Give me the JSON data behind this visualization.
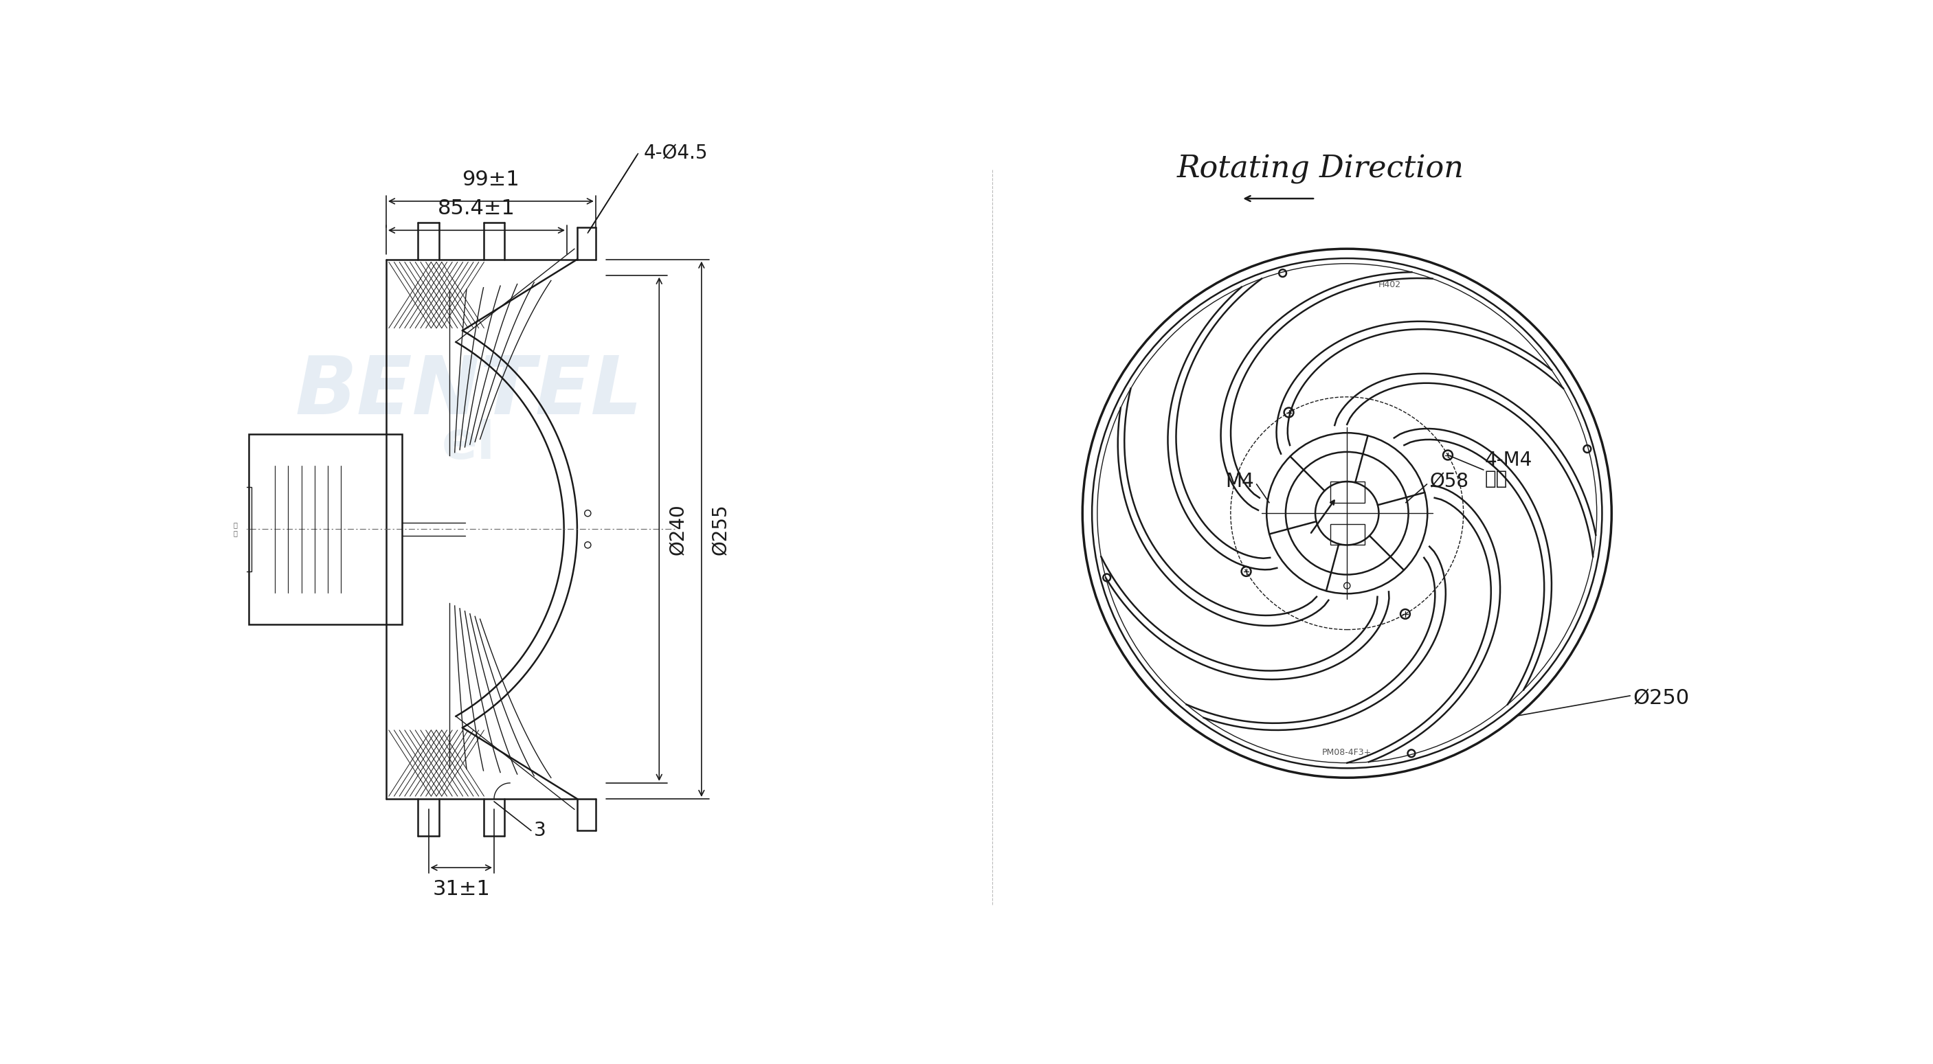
{
  "bg_color": "#ffffff",
  "line_color": "#1a1a1a",
  "dim_color": "#1a1a1a",
  "wm_color": "#c8d8e8",
  "title_right": "Rotating Direction",
  "title_fontsize": 32,
  "ann_fontsize": 20,
  "dim_fontsize": 20,
  "left_dims": {
    "width_99": "99±1",
    "width_85": "85.4±1",
    "holes": "4-Ø4.5",
    "d240": "Ø240",
    "d255": "Ø255",
    "d31": "31±1",
    "d3": "3"
  },
  "right_dims": {
    "m4": "M4",
    "d58": "Ø58",
    "m4_dist": "4-M4",
    "equally": "均布",
    "d250": "Ø250"
  }
}
